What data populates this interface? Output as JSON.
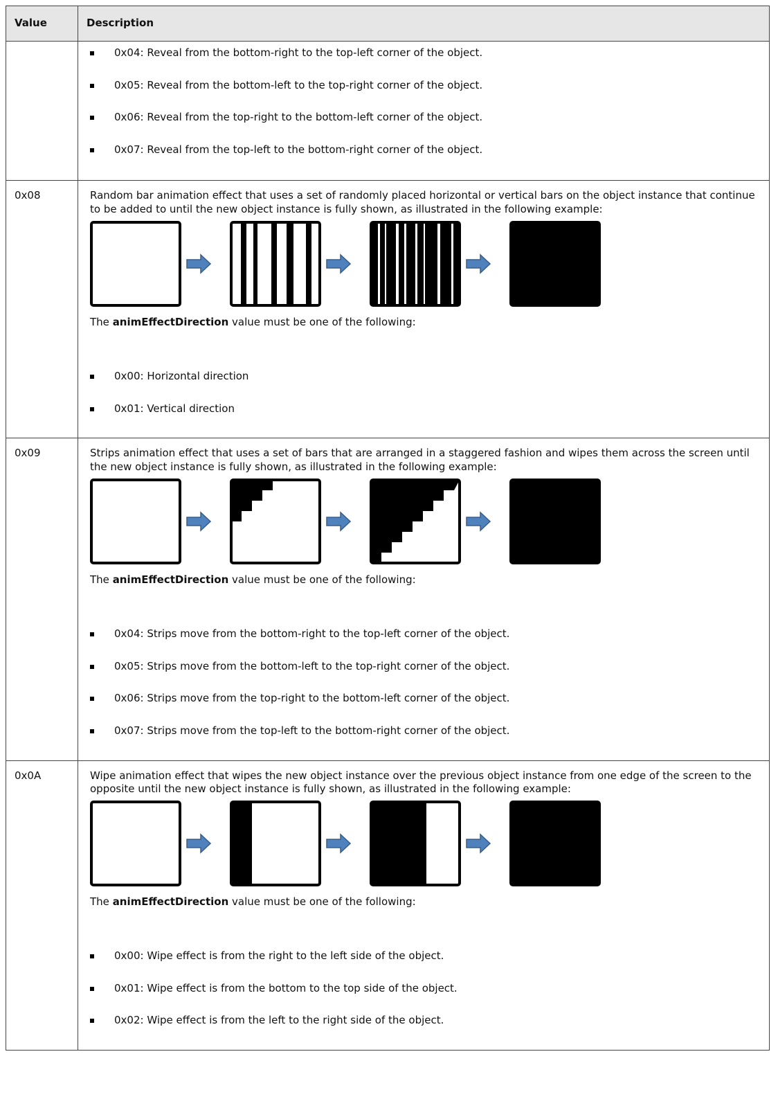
{
  "table": {
    "header": [
      "Value",
      "Description"
    ],
    "rows": [
      {
        "bullets": [
          "0x04: Reveal from the bottom-right to the top-left corner of the object.",
          "0x05: Reveal from the bottom-left to the top-right corner of the object.",
          "0x06: Reveal from the top-right to the bottom-left corner of the object.",
          "0x07: Reveal from the top-left to the bottom-right corner of the object."
        ]
      },
      {
        "value": "0x08",
        "text": "Random bar animation effect that uses a set of randomly placed horizontal or vertical bars on the object instance that continue to be added to until the new object instance is fully shown, as illustrated in the following example:",
        "direction_intro": {
          "before": "The",
          "keyword": "animEffectDirection",
          "after": "value must be one of the following:"
        },
        "bullets": [
          "0x00: Horizontal direction",
          "0x01: Vertical direction"
        ]
      },
      {
        "value": "0x09",
        "text": "Strips animation effect that uses a set of bars that are arranged in a staggered fashion and wipes them across the screen until the new object instance is fully shown, as illustrated in the following example:",
        "direction_intro": {
          "before": "The",
          "keyword": "animEffectDirection",
          "after": "value must be one of the following:"
        },
        "bullets": [
          "0x04: Strips move from the bottom-right to the top-left corner of the object.",
          "0x05: Strips move from the bottom-left to the top-right corner of the object.",
          "0x06: Strips move from the top-right to the bottom-left corner of the object.",
          "0x07: Strips move from the top-left to the bottom-right corner of the object."
        ]
      },
      {
        "value": "0x0A",
        "text": "Wipe animation effect that wipes the new object instance over the previous object instance from one edge of the screen to the opposite until the new object instance is fully shown, as illustrated in the following example:",
        "direction_intro": {
          "before": "The",
          "keyword": "animEffectDirection",
          "after": "value must be one of the following:"
        },
        "bullets": [
          "0x00: Wipe effect is from the right to the left side of the object.",
          "0x01: Wipe effect is from the bottom to the top side of the object.",
          "0x02: Wipe effect is from the left to the right side of the object."
        ]
      }
    ]
  }
}
